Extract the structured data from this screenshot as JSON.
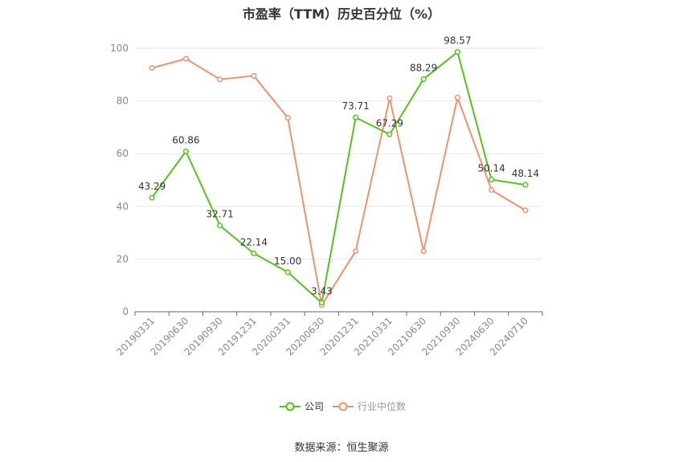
{
  "chart_data": {
    "type": "line",
    "title": "市盈率（TTM）历史百分位（%）",
    "xlabel": "",
    "ylabel": "",
    "ylim": [
      0,
      100
    ],
    "yticks": [
      0,
      20,
      40,
      60,
      80,
      100
    ],
    "categories": [
      "20190331",
      "20190630",
      "20190930",
      "20191231",
      "20200331",
      "20200630",
      "20201231",
      "20210331",
      "20210630",
      "20210930",
      "20240630",
      "20240710"
    ],
    "series": [
      {
        "name": "公司",
        "color": "#52c41a",
        "values": [
          43.29,
          60.86,
          32.71,
          22.14,
          15.0,
          3.43,
          73.71,
          67.29,
          88.29,
          98.57,
          50.14,
          48.14
        ],
        "labels": [
          "43.29",
          "60.86",
          "32.71",
          "22.14",
          "15.00",
          "3.43",
          "73.71",
          "67.29",
          "88.29",
          "98.57",
          "50.14",
          "48.14"
        ]
      },
      {
        "name": "行业中位数",
        "color": "#f0926a",
        "values": [
          92.5,
          96.0,
          88.2,
          89.5,
          73.6,
          2.5,
          23.0,
          81.0,
          23.0,
          81.3,
          46.2,
          38.5
        ]
      }
    ],
    "grid": true,
    "legend": "bottom-center"
  },
  "source": "数据来源：恒生聚源"
}
